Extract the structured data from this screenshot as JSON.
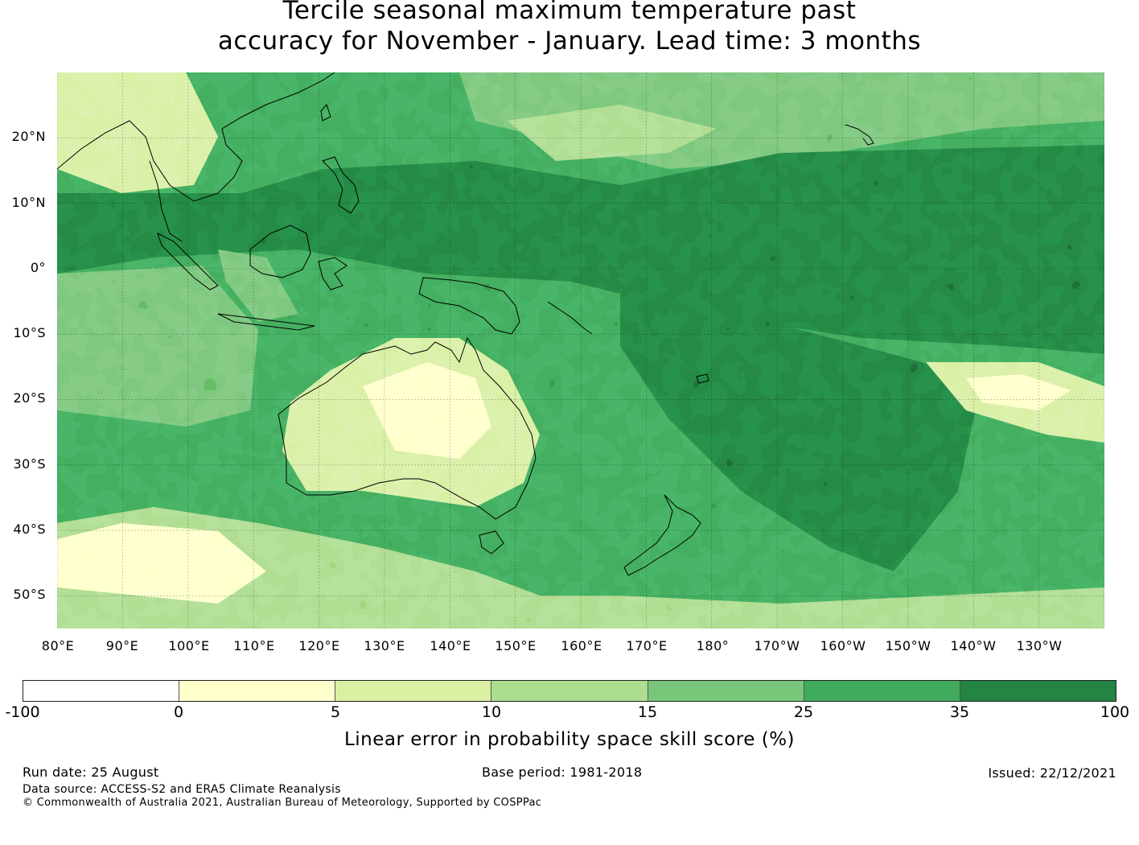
{
  "title": {
    "line1": "Tercile seasonal maximum temperature past",
    "line2": "accuracy for November - January. Lead time: 3 months"
  },
  "map": {
    "lat_labels": [
      "20°N",
      "10°N",
      "0°",
      "10°S",
      "20°S",
      "30°S",
      "40°S",
      "50°S"
    ],
    "lon_labels": [
      "80°E",
      "90°E",
      "100°E",
      "110°E",
      "120°E",
      "130°E",
      "140°E",
      "150°E",
      "160°E",
      "170°E",
      "180°",
      "170°W",
      "160°W",
      "150°W",
      "140°W",
      "130°W"
    ],
    "extent": {
      "lon": [
        80,
        240
      ],
      "lat": [
        -55,
        30
      ]
    }
  },
  "legend": {
    "ticks": [
      "-100",
      "0",
      "5",
      "10",
      "15",
      "25",
      "35",
      "100"
    ],
    "colors": [
      "#ffffff",
      "#ffffcc",
      "#d9f0a3",
      "#addd8e",
      "#78c679",
      "#41ab5d",
      "#238443"
    ],
    "label": "Linear error in probability space skill score (%)"
  },
  "footer": {
    "run_date": "Run date: 25 August",
    "base_period": "Base period: 1981-2018",
    "issued": "Issued: 22/12/2021",
    "data_source": "Data source: ACCESS-S2 and ERA5 Climate Reanalysis",
    "copyright": "© Commonwealth of Australia 2021, Australian Bureau of Meteorology, Supported by COSPPac"
  }
}
